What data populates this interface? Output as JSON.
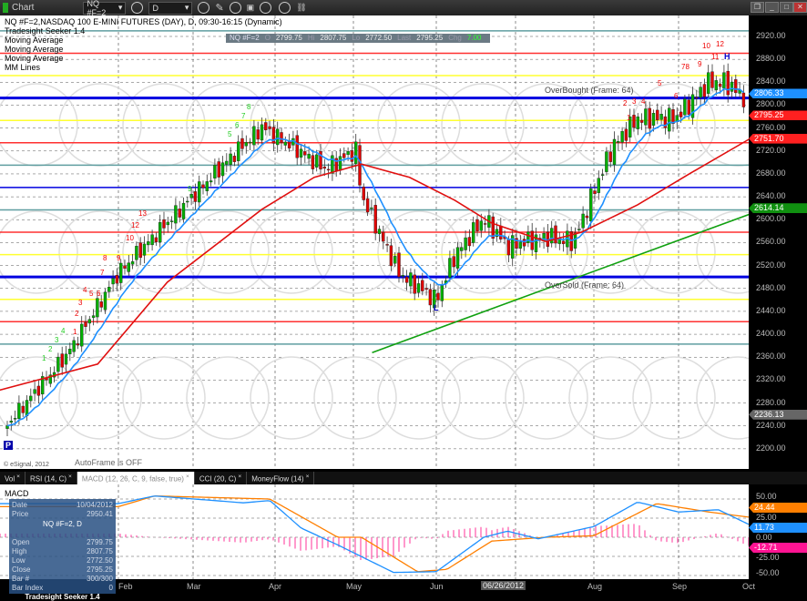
{
  "toolbar": {
    "title": "Chart",
    "symbol": "NQ #F=2",
    "interval": "D"
  },
  "header": {
    "title": "NQ #F=2,NASDAQ 100 E-MINI FUTURES (DAY), D, 09:30-16:15 (Dynamic)",
    "studies": [
      "Tradesight Seeker 1.4",
      "Moving Average",
      "Moving Average",
      "Moving Average",
      "MM Lines"
    ]
  },
  "ohlc_bar": {
    "symbol": "NQ #F=2",
    "o_label": "O",
    "open": "2799.75",
    "h_label": "Hi",
    "high": "2807.75",
    "l_label": "Lo",
    "low": "2772.50",
    "last_label": "Last",
    "last": "2795.25",
    "chg_label": "Chg",
    "chg": "7.00"
  },
  "price_axis": {
    "ticks": [
      "2920.00",
      "2880.00",
      "2840.00",
      "2800.00",
      "2760.00",
      "2720.00",
      "2680.00",
      "2640.00",
      "2600.00",
      "2560.00",
      "2520.00",
      "2480.00",
      "2440.00",
      "2400.00",
      "2360.00",
      "2320.00",
      "2280.00",
      "2240.00",
      "2200.00"
    ],
    "tags": [
      {
        "value": "2806.33",
        "color": "#1e90ff"
      },
      {
        "value": "2795.25",
        "color": "#ff2020"
      },
      {
        "value": "2751.70",
        "color": "#ff2020"
      },
      {
        "value": "2614.14",
        "color": "#109010"
      },
      {
        "value": "2236.13",
        "color": "#666666"
      }
    ]
  },
  "annotations": {
    "overbought": "OverBought (Frame: 64)",
    "oversold": "OverSold (Frame: 64)",
    "high_marker": "H",
    "low_marker": "L",
    "autoframe": "AutoFrame is OFF",
    "copyright": "© eSignal, 2012",
    "p_marker": "P"
  },
  "seeker_labels": [
    "78",
    "9",
    "10",
    "11",
    "12",
    "5",
    "4",
    "3",
    "2",
    "1",
    "6",
    "1",
    "2",
    "3",
    "4",
    "5",
    "6",
    "7",
    "8",
    "9",
    "10",
    "12",
    "13",
    "1",
    "2",
    "3",
    "4",
    "5",
    "6",
    "7",
    "8",
    "9"
  ],
  "tabs": [
    {
      "label": "Vol"
    },
    {
      "label": "RSI (14, C)"
    },
    {
      "label": "MACD (12, 26, C, 9, false, true)",
      "active": true
    },
    {
      "label": "CCI (20, C)"
    },
    {
      "label": "MoneyFlow (14)"
    }
  ],
  "macd": {
    "title": "MACD",
    "ticks": [
      "50.00",
      "25.00",
      "0.00",
      "-25.00",
      "-50.00"
    ],
    "tags": [
      {
        "value": "24.44",
        "color": "#ff7f00"
      },
      {
        "value": "11.73",
        "color": "#1e90ff"
      },
      {
        "value": "-12.71",
        "color": "#ff1493"
      }
    ]
  },
  "data_window": {
    "rows": [
      [
        "Date",
        "10/04/2012"
      ],
      [
        "Price",
        "2950.41"
      ]
    ],
    "symbol": "NQ #F=2, D",
    "rows2": [
      [
        "Open",
        "2799.75"
      ],
      [
        "High",
        "2807.75"
      ],
      [
        "Low",
        "2772.50"
      ],
      [
        "Close",
        "2795.25"
      ],
      [
        "Bar #",
        "300/300"
      ],
      [
        "Bar Index",
        "0"
      ]
    ],
    "footer": "Tradesight Seeker 1.4"
  },
  "date_axis": {
    "labels": [
      "Feb",
      "Mar",
      "Apr",
      "May",
      "Jun",
      "06/26/2012",
      "Aug",
      "Sep",
      "Oct"
    ]
  },
  "chart_data": {
    "type": "candlestick",
    "ylim": [
      2200,
      2920
    ],
    "close_path": [
      [
        "2011-12-19",
        2237
      ],
      [
        "2012-01-12",
        2364
      ],
      [
        "2012-02-01",
        2507
      ],
      [
        "2012-03-01",
        2642
      ],
      [
        "2012-03-16",
        2713
      ],
      [
        "2012-03-27",
        2761
      ],
      [
        "2012-04-10",
        2721
      ],
      [
        "2012-04-20",
        2689
      ],
      [
        "2012-05-02",
        2721
      ],
      [
        "2012-05-04",
        2642
      ],
      [
        "2012-05-18",
        2507
      ],
      [
        "2012-06-01",
        2459
      ],
      [
        "2012-06-08",
        2538
      ],
      [
        "2012-06-19",
        2602
      ],
      [
        "2012-06-28",
        2554
      ],
      [
        "2012-07-13",
        2570
      ],
      [
        "2012-07-24",
        2562
      ],
      [
        "2012-08-01",
        2650
      ],
      [
        "2012-08-08",
        2729
      ],
      [
        "2012-08-17",
        2777
      ],
      [
        "2012-08-31",
        2777
      ],
      [
        "2012-09-14",
        2840
      ],
      [
        "2012-09-21",
        2840
      ],
      [
        "2012-10-04",
        2795
      ]
    ],
    "slow_ma_path": [
      [
        "2011-12-15",
        2300
      ],
      [
        "2012-01-24",
        2348
      ],
      [
        "2012-02-20",
        2491
      ],
      [
        "2012-03-27",
        2618
      ],
      [
        "2012-04-16",
        2674
      ],
      [
        "2012-05-04",
        2697
      ],
      [
        "2012-05-22",
        2674
      ],
      [
        "2012-06-08",
        2634
      ],
      [
        "2012-06-22",
        2594
      ],
      [
        "2012-07-13",
        2562
      ],
      [
        "2012-07-27",
        2578
      ],
      [
        "2012-08-17",
        2626
      ],
      [
        "2012-09-06",
        2681
      ],
      [
        "2012-10-04",
        2748
      ]
    ],
    "long_ma_path": [
      [
        "2012-05-08",
        2368
      ],
      [
        "2012-10-04",
        2614
      ]
    ],
    "mm_lines": [
      2929.7,
      2890.6,
      2851.6,
      2812.5,
      2773.4,
      2734.4,
      2695.3,
      2656.3,
      2617.2,
      2578.1,
      2539.1,
      2500,
      2460.9,
      2421.9,
      2382.8
    ],
    "mm_colors": [
      "#5f9ea0",
      "#ff3030",
      "#ffff30",
      "#0000e0",
      "#ffff30",
      "#ff3030",
      "#5f9ea0",
      "#0000e0",
      "#5f9ea0",
      "#ff3030",
      "#ffff30",
      "#0000e0",
      "#ffff30",
      "#ff3030",
      "#5f9ea0"
    ],
    "macd_line": [
      [
        "2012-02-01",
        44
      ],
      [
        "2012-02-15",
        54
      ],
      [
        "2012-03-09",
        48
      ],
      [
        "2012-03-20",
        45
      ],
      [
        "2012-03-30",
        48
      ],
      [
        "2012-04-11",
        12
      ],
      [
        "2012-04-25",
        -10
      ],
      [
        "2012-05-16",
        -46
      ],
      [
        "2012-06-01",
        -45
      ],
      [
        "2012-06-19",
        0
      ],
      [
        "2012-06-28",
        8
      ],
      [
        "2012-07-10",
        -2
      ],
      [
        "2012-08-01",
        14
      ],
      [
        "2012-08-17",
        46
      ],
      [
        "2012-09-01",
        33
      ],
      [
        "2012-09-18",
        36
      ],
      [
        "2012-10-04",
        12
      ]
    ],
    "signal_line": [
      [
        "2012-02-01",
        40
      ],
      [
        "2012-02-15",
        54
      ],
      [
        "2012-03-30",
        50
      ],
      [
        "2012-04-25",
        0
      ],
      [
        "2012-05-04",
        0
      ],
      [
        "2012-05-25",
        -45
      ],
      [
        "2012-06-05",
        -42
      ],
      [
        "2012-06-22",
        -5
      ],
      [
        "2012-07-13",
        0
      ],
      [
        "2012-08-01",
        2
      ],
      [
        "2012-08-24",
        44
      ],
      [
        "2012-09-14",
        33
      ],
      [
        "2012-10-04",
        25
      ]
    ]
  }
}
